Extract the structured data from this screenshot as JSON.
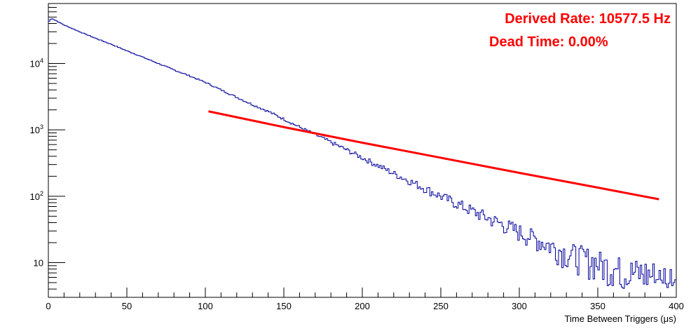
{
  "chart_data": {
    "type": "line",
    "title": "",
    "xlabel": "Time Between Triggers (μs)",
    "ylabel": "",
    "xlim": [
      0,
      400
    ],
    "ylim": [
      3,
      80000
    ],
    "yscale": "log",
    "grid": false,
    "x_ticks": [
      {
        "value": 0,
        "label": "0"
      },
      {
        "value": 50,
        "label": "50"
      },
      {
        "value": 100,
        "label": "100"
      },
      {
        "value": 150,
        "label": "150"
      },
      {
        "value": 200,
        "label": "200"
      },
      {
        "value": 250,
        "label": "250"
      },
      {
        "value": 300,
        "label": "300"
      },
      {
        "value": 350,
        "label": "350"
      },
      {
        "value": 400,
        "label": "400"
      }
    ],
    "y_ticks": [
      {
        "value": 10,
        "base": "10",
        "exp": ""
      },
      {
        "value": 100,
        "base": "10",
        "exp": "2"
      },
      {
        "value": 1000,
        "base": "10",
        "exp": "3"
      },
      {
        "value": 10000,
        "base": "10",
        "exp": "4"
      }
    ],
    "annotations": [
      {
        "text": "Derived Rate: 10577.5 Hz",
        "color": "#ff0000"
      },
      {
        "text": "Dead Time: 0.00%",
        "color": "#ff0000"
      }
    ],
    "series": [
      {
        "kind": "histogram",
        "color": "#000099",
        "bin_width": 1,
        "x": [
          0,
          2,
          5,
          10,
          20,
          30,
          40,
          50,
          60,
          70,
          80,
          90,
          100,
          110,
          120,
          130,
          140,
          150,
          160,
          170,
          180,
          190,
          200,
          210,
          220,
          230,
          240,
          250,
          260,
          270,
          280,
          290,
          300,
          310,
          320,
          330,
          340,
          350,
          360,
          370,
          380,
          390,
          395,
          400
        ],
        "y": [
          42000,
          48000,
          44000,
          38000,
          30000,
          24000,
          19500,
          15500,
          12500,
          10000,
          8000,
          6500,
          5200,
          4000,
          3100,
          2400,
          1900,
          1450,
          1100,
          850,
          650,
          500,
          380,
          290,
          220,
          170,
          130,
          100,
          78,
          60,
          47,
          37,
          29,
          23,
          18,
          14,
          12,
          10,
          8,
          7,
          7,
          6,
          6,
          6
        ]
      },
      {
        "kind": "fit",
        "color": "#ff0000",
        "x": [
          102,
          150,
          200,
          250,
          300,
          350,
          389
        ],
        "y": [
          1900,
          1100,
          640,
          380,
          225,
          135,
          90
        ]
      }
    ]
  }
}
